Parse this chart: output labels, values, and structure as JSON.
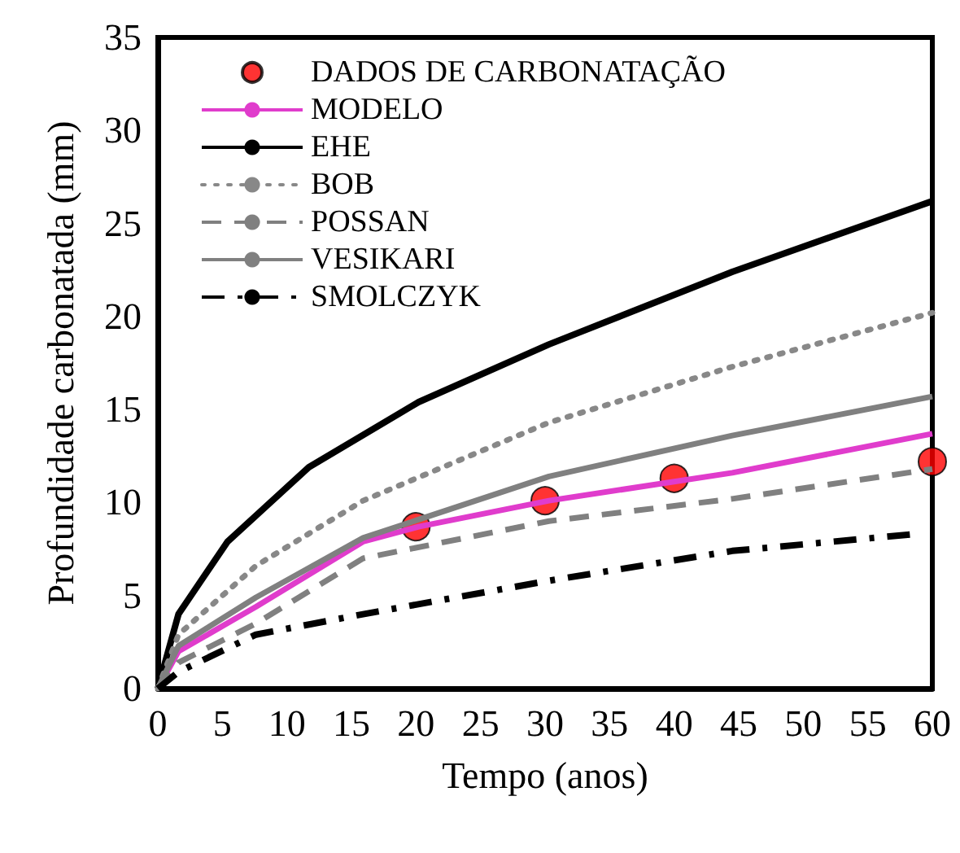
{
  "chart_data": {
    "type": "line",
    "xlabel": "Tempo (anos)",
    "ylabel": "Profundidade carbonatada (mm)",
    "xlim": [
      0,
      60
    ],
    "xticks": [
      0,
      5,
      10,
      15,
      20,
      25,
      30,
      35,
      40,
      45,
      50,
      55,
      60
    ],
    "ylim": [
      0,
      35
    ],
    "yticks": [
      0,
      5,
      10,
      15,
      20,
      25,
      30,
      35
    ],
    "grid": false,
    "legend": "top left",
    "marker": "none",
    "series": [
      {
        "name": "DADOS DE CARBONATAÇÃO",
        "type": "scatter",
        "marker": "circle",
        "color": "#ff0000",
        "x": [
          20,
          30,
          40,
          60
        ],
        "values": [
          8.7,
          10.1,
          11.3,
          12.2
        ]
      },
      {
        "name": "MODELO",
        "color": "#e03ccc",
        "line_style": "solid",
        "x": [
          0,
          1.6,
          7.6,
          15.9,
          20.2,
          30.3,
          44.5,
          60
        ],
        "values": [
          0,
          2.0,
          4.4,
          7.9,
          8.7,
          10.1,
          11.6,
          13.7
        ]
      },
      {
        "name": "EHE",
        "color": "#000000",
        "line_style": "solid",
        "x": [
          0,
          1.6,
          5.4,
          11.7,
          20.2,
          30.3,
          44.5,
          60
        ],
        "values": [
          0,
          4.0,
          7.9,
          11.9,
          15.4,
          18.5,
          22.4,
          26.2
        ]
      },
      {
        "name": "BOB",
        "color": "#888888",
        "line_style": "dotted",
        "x": [
          0,
          1.6,
          7.6,
          15.9,
          30.3,
          44.5,
          60
        ],
        "values": [
          0,
          2.9,
          6.6,
          10.1,
          14.3,
          17.3,
          20.2
        ]
      },
      {
        "name": "POSSAN",
        "color": "#808080",
        "line_style": "dashed",
        "x": [
          0,
          1.6,
          7.6,
          15.9,
          30.3,
          44.5,
          60
        ],
        "values": [
          0,
          1.4,
          3.5,
          7.0,
          9.0,
          10.2,
          11.8
        ]
      },
      {
        "name": "VESIKARI",
        "color": "#808080",
        "line_style": "solid",
        "x": [
          0,
          1.6,
          7.6,
          15.9,
          30.3,
          44.5,
          60
        ],
        "values": [
          0,
          2.3,
          4.9,
          8.1,
          11.4,
          13.6,
          15.7
        ]
      },
      {
        "name": "SMOLCZYK",
        "color": "#000000",
        "line_style": "dashdot",
        "x": [
          0,
          1.6,
          7.6,
          15.9,
          30.3,
          44.5,
          58.6
        ],
        "values": [
          0,
          0.9,
          2.9,
          4.0,
          5.8,
          7.4,
          8.3
        ]
      }
    ]
  }
}
